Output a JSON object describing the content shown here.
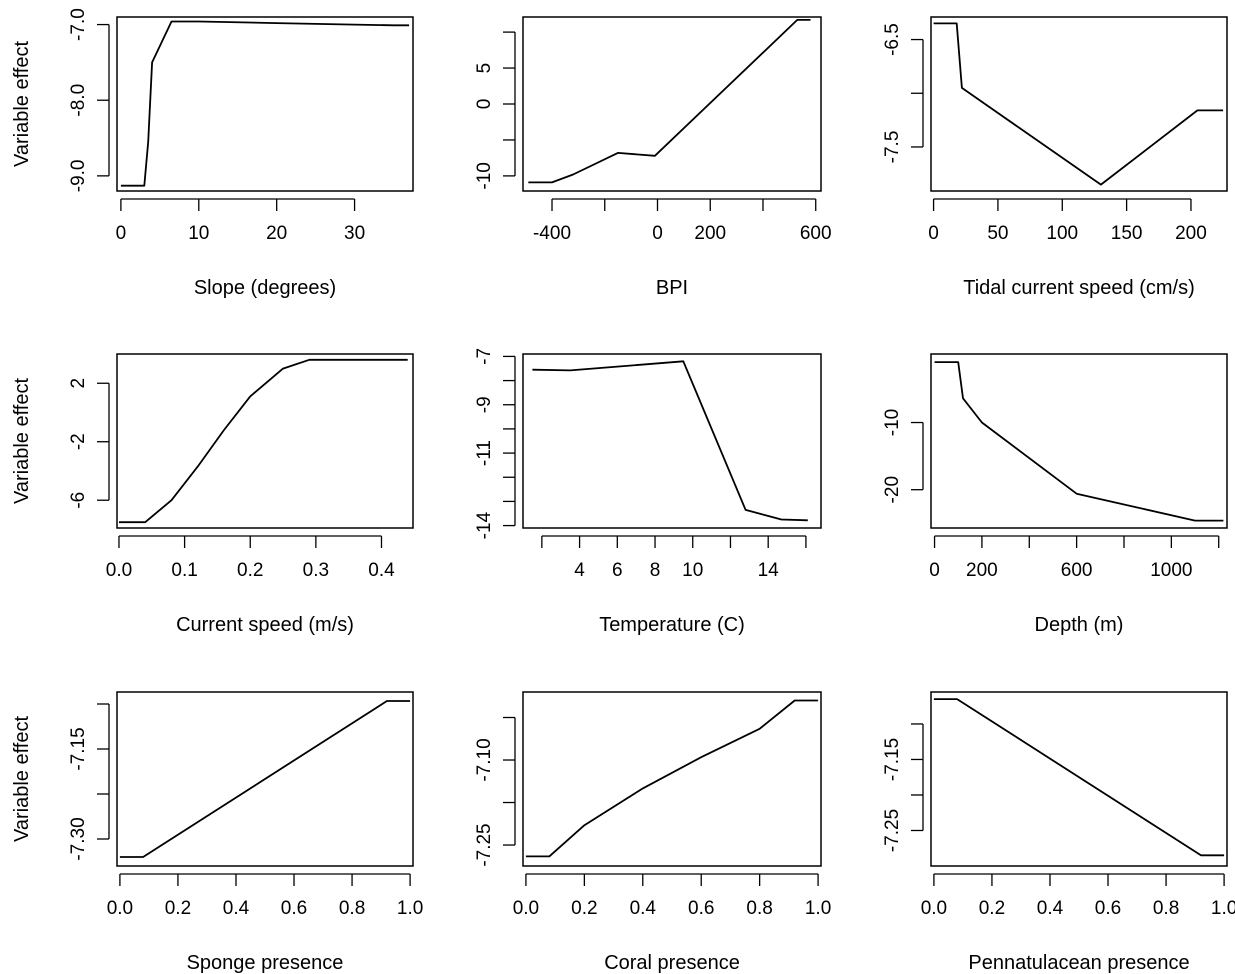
{
  "chart_data": [
    {
      "type": "line",
      "title": "",
      "xlabel": "Slope (degrees)",
      "ylabel": "Variable effect",
      "xlim": [
        -0.5,
        37.5
      ],
      "ylim": [
        -9.2,
        -6.9
      ],
      "xticks": [
        0,
        10,
        20,
        30
      ],
      "yticks": [
        -9.0,
        -8.0,
        -7.0
      ],
      "ytick_labels": [
        "-9.0",
        "-8.0",
        "-7.0"
      ],
      "x": [
        0,
        3,
        3.5,
        4,
        6.5,
        10,
        20,
        30,
        35,
        37
      ],
      "y": [
        -9.13,
        -9.13,
        -8.55,
        -7.5,
        -6.96,
        -6.96,
        -6.98,
        -7.0,
        -7.01,
        -7.01
      ]
    },
    {
      "type": "line",
      "title": "",
      "xlabel": "BPI",
      "ylabel": "",
      "xlim": [
        -510,
        620
      ],
      "ylim": [
        -12.1,
        12.1
      ],
      "xticks": [
        -400,
        -200,
        0,
        200,
        400,
        600
      ],
      "xtick_labels": [
        "-400",
        "",
        "0",
        "200",
        "",
        "600"
      ],
      "yticks": [
        -10,
        -5,
        0,
        5,
        10
      ],
      "ytick_labels": [
        "-10",
        "",
        "0",
        "5",
        ""
      ],
      "x": [
        -490,
        -400,
        -320,
        -150,
        -10,
        530,
        580
      ],
      "y": [
        -10.9,
        -10.9,
        -9.8,
        -6.8,
        -7.2,
        11.7,
        11.7
      ]
    },
    {
      "type": "line",
      "title": "",
      "xlabel": "Tidal current speed (cm/s)",
      "ylabel": "",
      "xlim": [
        -2,
        228
      ],
      "ylim": [
        -7.91,
        -6.29
      ],
      "xticks": [
        0,
        50,
        100,
        150,
        200
      ],
      "yticks": [
        -7.5,
        -7.0,
        -6.5
      ],
      "ytick_labels": [
        "-7.5",
        "",
        "-6.5"
      ],
      "x": [
        0,
        18,
        22,
        130,
        205,
        225
      ],
      "y": [
        -6.35,
        -6.35,
        -6.95,
        -7.85,
        -7.16,
        -7.16
      ]
    },
    {
      "type": "line",
      "title": "",
      "xlabel": "Current speed (m/s)",
      "ylabel": "Variable effect",
      "xlim": [
        -0.003,
        0.448
      ],
      "ylim": [
        -7.9,
        4.0
      ],
      "xticks": [
        0.0,
        0.1,
        0.2,
        0.3,
        0.4
      ],
      "xtick_labels": [
        "0.0",
        "0.1",
        "0.2",
        "0.3",
        "0.4"
      ],
      "yticks": [
        -6,
        -2,
        2
      ],
      "x": [
        0,
        0.04,
        0.08,
        0.12,
        0.16,
        0.2,
        0.25,
        0.29,
        0.44
      ],
      "y": [
        -7.5,
        -7.5,
        -6.0,
        -3.7,
        -1.2,
        1.1,
        3.0,
        3.6,
        3.6
      ]
    },
    {
      "type": "line",
      "title": "",
      "xlabel": "Temperature (C)",
      "ylabel": "",
      "xlim": [
        1.0,
        16.8
      ],
      "ylim": [
        -14.1,
        -6.9
      ],
      "xticks": [
        2,
        4,
        6,
        8,
        10,
        12,
        14,
        16
      ],
      "xtick_labels": [
        "",
        "4",
        "6",
        "8",
        "10",
        "",
        "14",
        ""
      ],
      "yticks": [
        -14,
        -13,
        -12,
        -11,
        -10,
        -9,
        -8,
        -7
      ],
      "ytick_labels": [
        "-14",
        "",
        "",
        "-11",
        "",
        "-9",
        "",
        "-7"
      ],
      "x": [
        1.5,
        3.5,
        6,
        9.5,
        12.8,
        14.7,
        16.1
      ],
      "y": [
        -7.55,
        -7.58,
        -7.42,
        -7.2,
        -13.35,
        -13.75,
        -13.78
      ]
    },
    {
      "type": "line",
      "title": "",
      "xlabel": "Depth (m)",
      "ylabel": "",
      "xlim": [
        -15,
        1235
      ],
      "ylim": [
        -25.7,
        0.2
      ],
      "xticks": [
        0,
        200,
        400,
        600,
        800,
        1000,
        1200
      ],
      "xtick_labels": [
        "0",
        "200",
        "",
        "600",
        "",
        "1000",
        ""
      ],
      "yticks": [
        -20,
        -10
      ],
      "x": [
        0,
        100,
        120,
        200,
        600,
        1100,
        1220
      ],
      "y": [
        -1.0,
        -1.0,
        -6.4,
        -10.0,
        -20.6,
        -24.6,
        -24.6
      ]
    },
    {
      "type": "line",
      "title": "",
      "xlabel": "Sponge presence",
      "ylabel": "Variable effect",
      "xlim": [
        -0.01,
        1.01
      ],
      "ylim": [
        -7.345,
        -7.055
      ],
      "xticks": [
        0.0,
        0.2,
        0.4,
        0.6,
        0.8,
        1.0
      ],
      "xtick_labels": [
        "0.0",
        "0.2",
        "0.4",
        "0.6",
        "0.8",
        "1.0"
      ],
      "yticks": [
        -7.3,
        -7.225,
        -7.15,
        -7.075
      ],
      "ytick_labels": [
        "-7.30",
        "",
        "-7.15",
        ""
      ],
      "x": [
        0,
        0.08,
        0.92,
        1.0
      ],
      "y": [
        -7.33,
        -7.33,
        -7.07,
        -7.07
      ]
    },
    {
      "type": "line",
      "title": "",
      "xlabel": "Coral presence",
      "ylabel": "",
      "xlim": [
        -0.01,
        1.01
      ],
      "ylim": [
        -7.287,
        -6.98
      ],
      "xticks": [
        0.0,
        0.2,
        0.4,
        0.6,
        0.8,
        1.0
      ],
      "xtick_labels": [
        "0.0",
        "0.2",
        "0.4",
        "0.6",
        "0.8",
        "1.0"
      ],
      "yticks": [
        -7.25,
        -7.175,
        -7.1,
        -7.025
      ],
      "ytick_labels": [
        "-7.25",
        "",
        "-7.10",
        ""
      ],
      "x": [
        0,
        0.08,
        0.2,
        0.4,
        0.6,
        0.8,
        0.92,
        1.0
      ],
      "y": [
        -7.27,
        -7.27,
        -7.215,
        -7.15,
        -7.095,
        -7.045,
        -6.995,
        -6.995
      ]
    },
    {
      "type": "line",
      "title": "",
      "xlabel": "Pennatulacean presence",
      "ylabel": "",
      "xlim": [
        -0.01,
        1.01
      ],
      "ylim": [
        -7.3,
        -7.055
      ],
      "xticks": [
        0.0,
        0.2,
        0.4,
        0.6,
        0.8,
        1.0
      ],
      "xtick_labels": [
        "0.0",
        "0.2",
        "0.4",
        "0.6",
        "0.8",
        "1.0"
      ],
      "yticks": [
        -7.25,
        -7.2,
        -7.15,
        -7.1
      ],
      "ytick_labels": [
        "-7.25",
        "",
        "-7.15",
        ""
      ],
      "x": [
        0,
        0.08,
        0.92,
        1.0
      ],
      "y": [
        -7.065,
        -7.065,
        -7.285,
        -7.285
      ]
    }
  ]
}
